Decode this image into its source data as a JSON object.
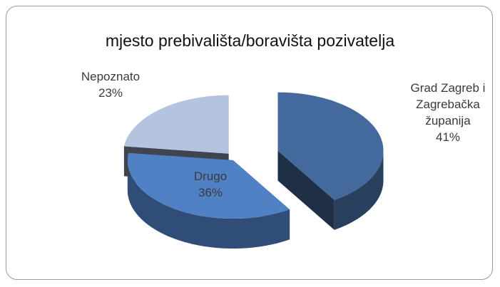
{
  "chart_data": {
    "type": "pie",
    "title": "mjesto prebivališta/boravišta pozivatelja",
    "categories": [
      "Grad Zagreb i Zagrebačka županija",
      "Drugo",
      "Nepoznato"
    ],
    "values": [
      41,
      36,
      23
    ],
    "value_labels": [
      "41%",
      "36%",
      "23%"
    ],
    "colors": [
      "#44699c",
      "#4f81c4",
      "#b4c3df"
    ]
  }
}
